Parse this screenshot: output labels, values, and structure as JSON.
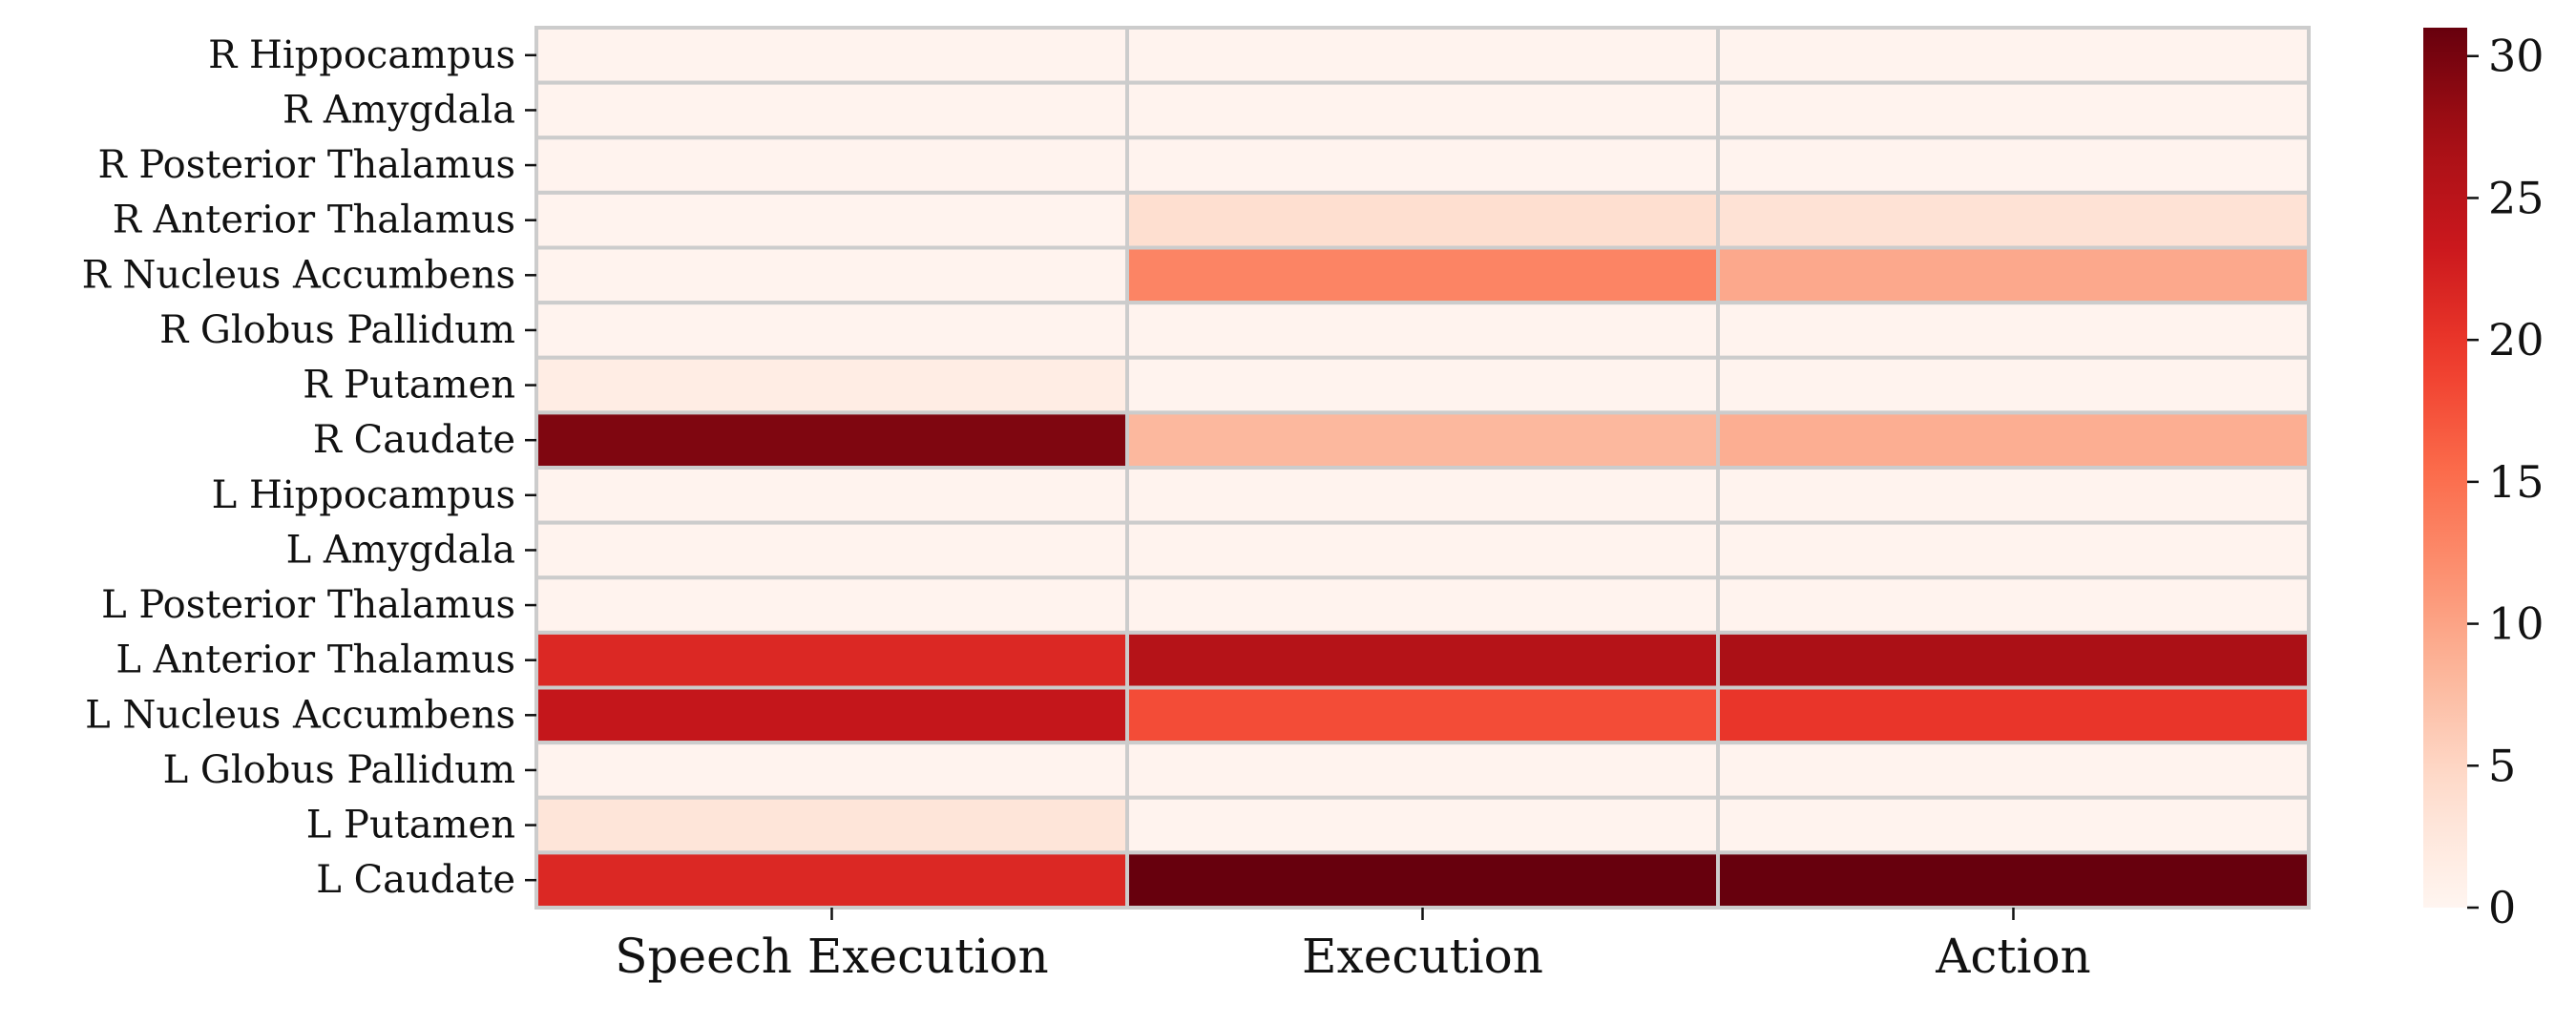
{
  "chart_data": {
    "type": "heatmap",
    "title": "",
    "xlabel": "",
    "ylabel": "",
    "rows": [
      "R Hippocampus",
      "R Amygdala",
      "R Posterior Thalamus",
      "R Anterior Thalamus",
      "R Nucleus Accumbens",
      "R Globus Pallidum",
      "R Putamen",
      "R Caudate",
      "L Hippocampus",
      "L Amygdala",
      "L Posterior Thalamus",
      "L Anterior Thalamus",
      "L Nucleus Accumbens",
      "L Globus Pallidum",
      "L Putamen",
      "L Caudate"
    ],
    "columns": [
      "Speech Execution",
      "Execution",
      "Action"
    ],
    "values": [
      [
        0.3,
        0.3,
        0.3
      ],
      [
        0.3,
        0.3,
        0.3
      ],
      [
        0.3,
        0.3,
        0.3
      ],
      [
        0.3,
        4.0,
        3.5
      ],
      [
        0.3,
        13.0,
        9.5
      ],
      [
        0.3,
        0.3,
        0.3
      ],
      [
        1.5,
        0.3,
        0.3
      ],
      [
        29.5,
        8.0,
        9.0
      ],
      [
        0.3,
        0.3,
        0.3
      ],
      [
        0.3,
        0.3,
        0.3
      ],
      [
        0.3,
        0.3,
        0.3
      ],
      [
        21.5,
        25.5,
        26.5
      ],
      [
        24.0,
        18.0,
        20.0
      ],
      [
        0.3,
        0.3,
        0.3
      ],
      [
        3.0,
        0.3,
        0.3
      ],
      [
        21.5,
        31.0,
        31.0
      ]
    ],
    "colorscale": "Reds",
    "vmin": 0,
    "vmax": 31,
    "colorbar_ticks": [
      0,
      5,
      10,
      15,
      20,
      25,
      30
    ],
    "grid_color": "#cccccc"
  }
}
